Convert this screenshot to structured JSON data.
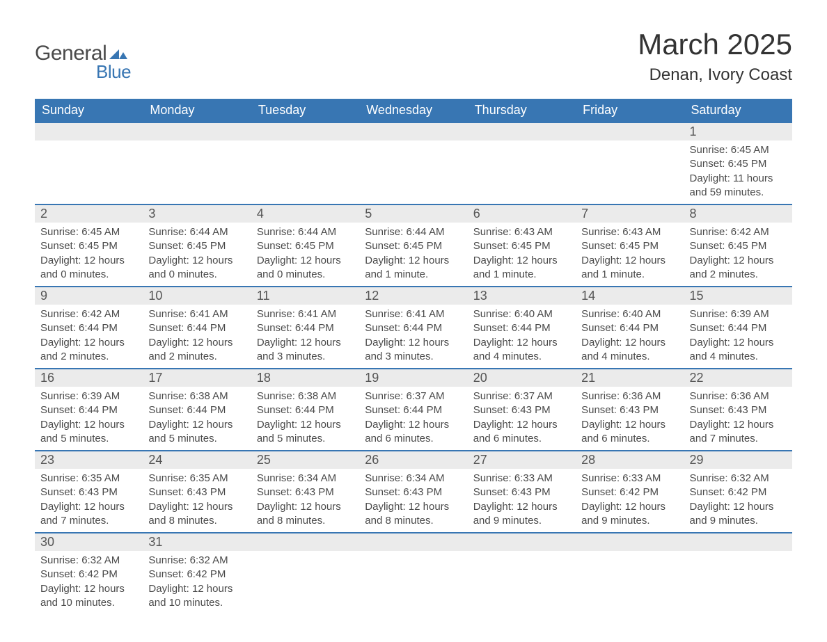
{
  "logo": {
    "word1": "General",
    "word2": "Blue",
    "word1_color": "#4a4a4a",
    "word2_color": "#3876b3",
    "shape_color": "#3876b3"
  },
  "title": "March 2025",
  "location": "Denan, Ivory Coast",
  "header_bg": "#3876b3",
  "header_text_color": "#ffffff",
  "daynum_bg": "#ebebeb",
  "cell_border_color": "#3876b3",
  "body_text_color": "#4a4a4a",
  "title_fontsize": 42,
  "location_fontsize": 24,
  "weekday_fontsize": 18,
  "daynum_fontsize": 18,
  "body_fontsize": 15,
  "weekdays": [
    "Sunday",
    "Monday",
    "Tuesday",
    "Wednesday",
    "Thursday",
    "Friday",
    "Saturday"
  ],
  "weeks": [
    [
      null,
      null,
      null,
      null,
      null,
      null,
      {
        "n": "1",
        "sr": "6:45 AM",
        "ss": "6:45 PM",
        "dl": "11 hours and 59 minutes."
      }
    ],
    [
      {
        "n": "2",
        "sr": "6:45 AM",
        "ss": "6:45 PM",
        "dl": "12 hours and 0 minutes."
      },
      {
        "n": "3",
        "sr": "6:44 AM",
        "ss": "6:45 PM",
        "dl": "12 hours and 0 minutes."
      },
      {
        "n": "4",
        "sr": "6:44 AM",
        "ss": "6:45 PM",
        "dl": "12 hours and 0 minutes."
      },
      {
        "n": "5",
        "sr": "6:44 AM",
        "ss": "6:45 PM",
        "dl": "12 hours and 1 minute."
      },
      {
        "n": "6",
        "sr": "6:43 AM",
        "ss": "6:45 PM",
        "dl": "12 hours and 1 minute."
      },
      {
        "n": "7",
        "sr": "6:43 AM",
        "ss": "6:45 PM",
        "dl": "12 hours and 1 minute."
      },
      {
        "n": "8",
        "sr": "6:42 AM",
        "ss": "6:45 PM",
        "dl": "12 hours and 2 minutes."
      }
    ],
    [
      {
        "n": "9",
        "sr": "6:42 AM",
        "ss": "6:44 PM",
        "dl": "12 hours and 2 minutes."
      },
      {
        "n": "10",
        "sr": "6:41 AM",
        "ss": "6:44 PM",
        "dl": "12 hours and 2 minutes."
      },
      {
        "n": "11",
        "sr": "6:41 AM",
        "ss": "6:44 PM",
        "dl": "12 hours and 3 minutes."
      },
      {
        "n": "12",
        "sr": "6:41 AM",
        "ss": "6:44 PM",
        "dl": "12 hours and 3 minutes."
      },
      {
        "n": "13",
        "sr": "6:40 AM",
        "ss": "6:44 PM",
        "dl": "12 hours and 4 minutes."
      },
      {
        "n": "14",
        "sr": "6:40 AM",
        "ss": "6:44 PM",
        "dl": "12 hours and 4 minutes."
      },
      {
        "n": "15",
        "sr": "6:39 AM",
        "ss": "6:44 PM",
        "dl": "12 hours and 4 minutes."
      }
    ],
    [
      {
        "n": "16",
        "sr": "6:39 AM",
        "ss": "6:44 PM",
        "dl": "12 hours and 5 minutes."
      },
      {
        "n": "17",
        "sr": "6:38 AM",
        "ss": "6:44 PM",
        "dl": "12 hours and 5 minutes."
      },
      {
        "n": "18",
        "sr": "6:38 AM",
        "ss": "6:44 PM",
        "dl": "12 hours and 5 minutes."
      },
      {
        "n": "19",
        "sr": "6:37 AM",
        "ss": "6:44 PM",
        "dl": "12 hours and 6 minutes."
      },
      {
        "n": "20",
        "sr": "6:37 AM",
        "ss": "6:43 PM",
        "dl": "12 hours and 6 minutes."
      },
      {
        "n": "21",
        "sr": "6:36 AM",
        "ss": "6:43 PM",
        "dl": "12 hours and 6 minutes."
      },
      {
        "n": "22",
        "sr": "6:36 AM",
        "ss": "6:43 PM",
        "dl": "12 hours and 7 minutes."
      }
    ],
    [
      {
        "n": "23",
        "sr": "6:35 AM",
        "ss": "6:43 PM",
        "dl": "12 hours and 7 minutes."
      },
      {
        "n": "24",
        "sr": "6:35 AM",
        "ss": "6:43 PM",
        "dl": "12 hours and 8 minutes."
      },
      {
        "n": "25",
        "sr": "6:34 AM",
        "ss": "6:43 PM",
        "dl": "12 hours and 8 minutes."
      },
      {
        "n": "26",
        "sr": "6:34 AM",
        "ss": "6:43 PM",
        "dl": "12 hours and 8 minutes."
      },
      {
        "n": "27",
        "sr": "6:33 AM",
        "ss": "6:43 PM",
        "dl": "12 hours and 9 minutes."
      },
      {
        "n": "28",
        "sr": "6:33 AM",
        "ss": "6:42 PM",
        "dl": "12 hours and 9 minutes."
      },
      {
        "n": "29",
        "sr": "6:32 AM",
        "ss": "6:42 PM",
        "dl": "12 hours and 9 minutes."
      }
    ],
    [
      {
        "n": "30",
        "sr": "6:32 AM",
        "ss": "6:42 PM",
        "dl": "12 hours and 10 minutes."
      },
      {
        "n": "31",
        "sr": "6:32 AM",
        "ss": "6:42 PM",
        "dl": "12 hours and 10 minutes."
      },
      null,
      null,
      null,
      null,
      null
    ]
  ],
  "labels": {
    "sunrise": "Sunrise: ",
    "sunset": "Sunset: ",
    "daylight": "Daylight: "
  }
}
